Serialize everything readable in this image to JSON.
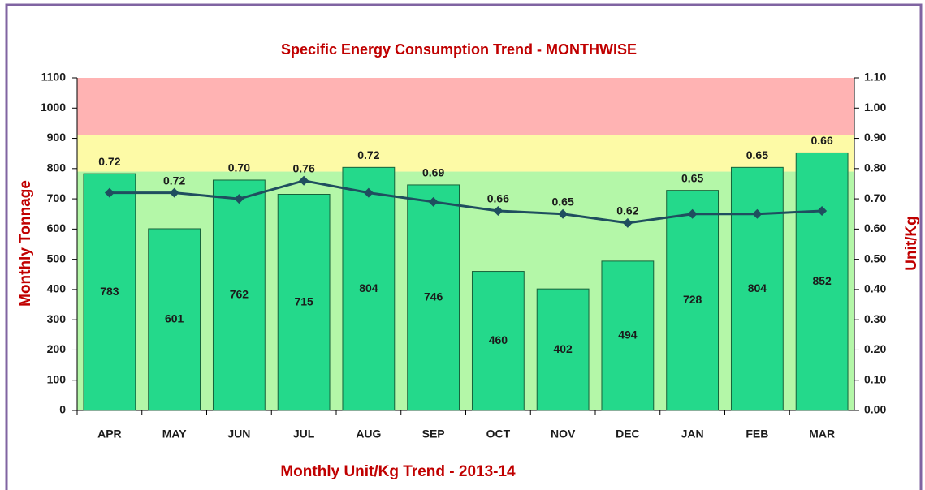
{
  "chart_data": {
    "type": "bar-line",
    "title": "Specific Energy Consumption Trend - MONTHWISE",
    "x_label": "Monthly  Unit/Kg Trend - 2013-14",
    "y_label": "Monthly Tonnage",
    "y2_label": "Unit/Kg",
    "categories": [
      "APR",
      "MAY",
      "JUN",
      "JUL",
      "AUG",
      "SEP",
      "OCT",
      "NOV",
      "DEC",
      "JAN",
      "FEB",
      "MAR"
    ],
    "series": [
      {
        "type": "bar",
        "color": "#24d98b",
        "values": [
          783,
          601,
          762,
          715,
          804,
          746,
          460,
          402,
          494,
          728,
          804,
          852
        ]
      },
      {
        "type": "line",
        "color": "#1f4e5f",
        "axis": "y2",
        "values": [
          0.72,
          0.72,
          0.7,
          0.76,
          0.72,
          0.69,
          0.66,
          0.65,
          0.62,
          0.65,
          0.65,
          0.66
        ],
        "value_labels": [
          "0.72",
          "0.72",
          "0.70",
          "0.76",
          "0.72",
          "0.69",
          "0.66",
          "0.65",
          "0.62",
          "0.65",
          "0.65",
          "0.66"
        ]
      }
    ],
    "bands": [
      {
        "from": 0,
        "to": 790,
        "color": "#b4f7a8"
      },
      {
        "from": 790,
        "to": 910,
        "color": "#fdfaa6"
      },
      {
        "from": 910,
        "to": 1100,
        "color": "#ffb3b3"
      }
    ],
    "ylim": [
      0,
      1100
    ],
    "yticks": [
      0,
      100,
      200,
      300,
      400,
      500,
      600,
      700,
      800,
      900,
      1000,
      1100
    ],
    "y2lim": [
      0,
      1.1
    ],
    "y2ticks": [
      {
        "value": 0,
        "label": "0.00"
      },
      {
        "value": 0.1,
        "label": "0.10"
      },
      {
        "value": 0.2,
        "label": "0.20"
      },
      {
        "value": 0.3,
        "label": "0.30"
      },
      {
        "value": 0.4,
        "label": "0.40"
      },
      {
        "value": 0.5,
        "label": "0.50"
      },
      {
        "value": 0.6,
        "label": "0.60"
      },
      {
        "value": 0.7,
        "label": "0.70"
      },
      {
        "value": 0.8,
        "label": "0.80"
      },
      {
        "value": 0.9,
        "label": "0.90"
      },
      {
        "value": 1,
        "label": "1.00"
      },
      {
        "value": 1.1,
        "label": "1.10"
      }
    ]
  }
}
